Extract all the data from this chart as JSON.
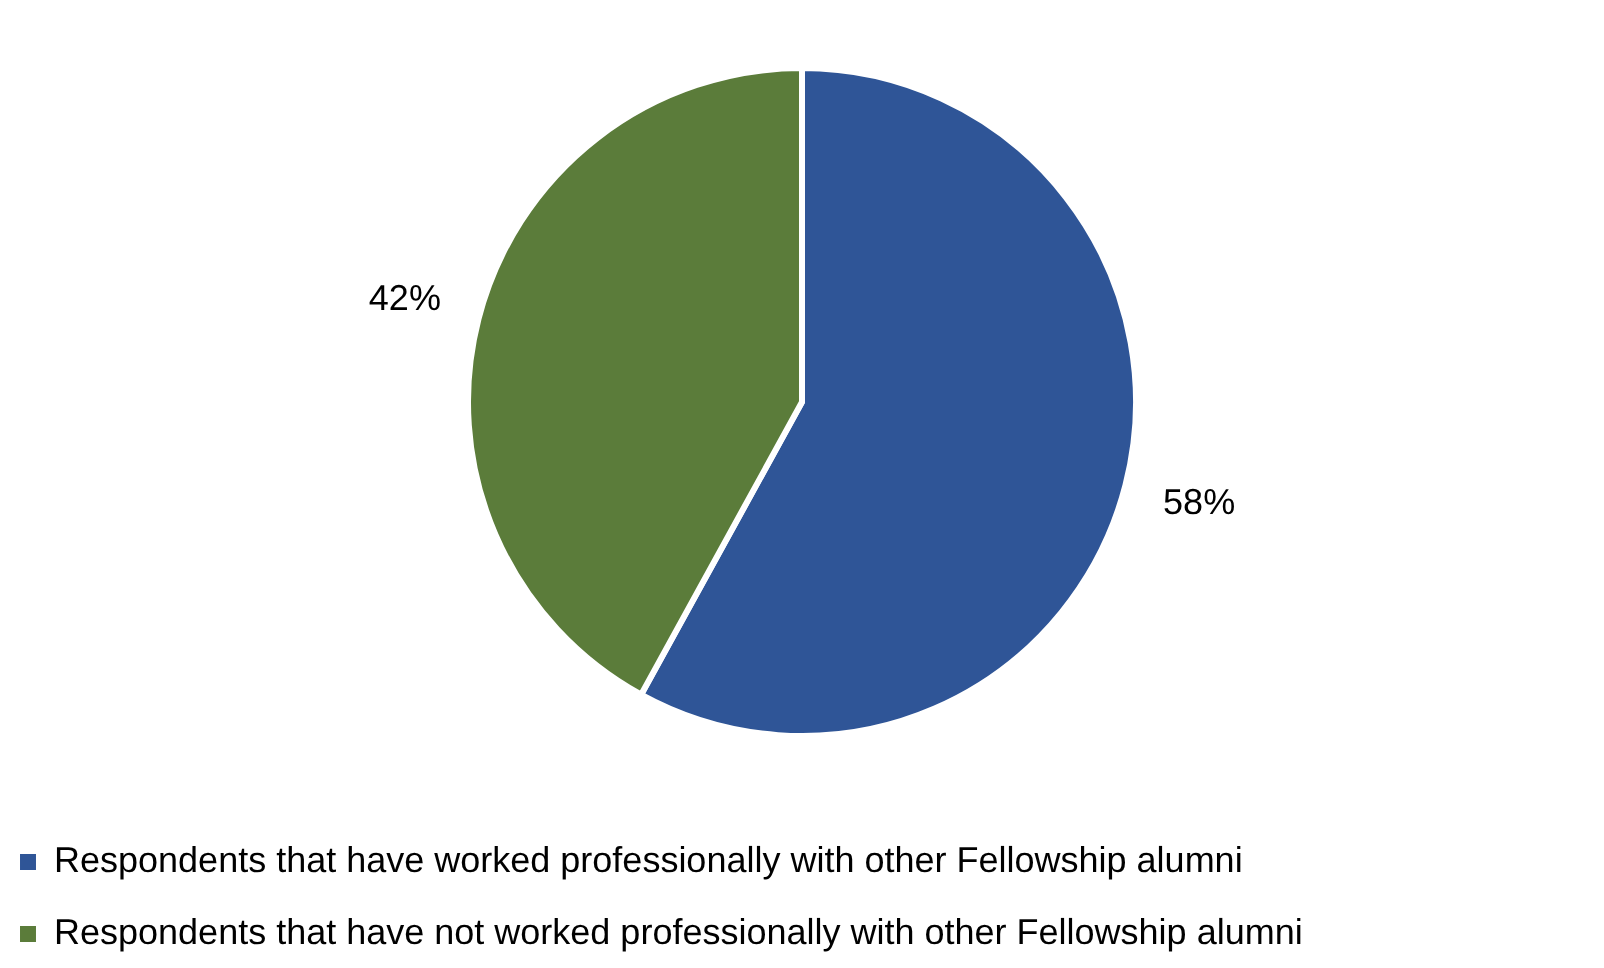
{
  "chart_data": {
    "type": "pie",
    "categories": [
      "Respondents that have worked professionally with other Fellowship alumni",
      "Respondents that have not worked professionally with other Fellowship alumni"
    ],
    "values": [
      58,
      42
    ],
    "colors": [
      "#2f5597",
      "#5b7c3a"
    ],
    "value_labels": [
      "58%",
      "42%"
    ],
    "legend": "bottom"
  }
}
